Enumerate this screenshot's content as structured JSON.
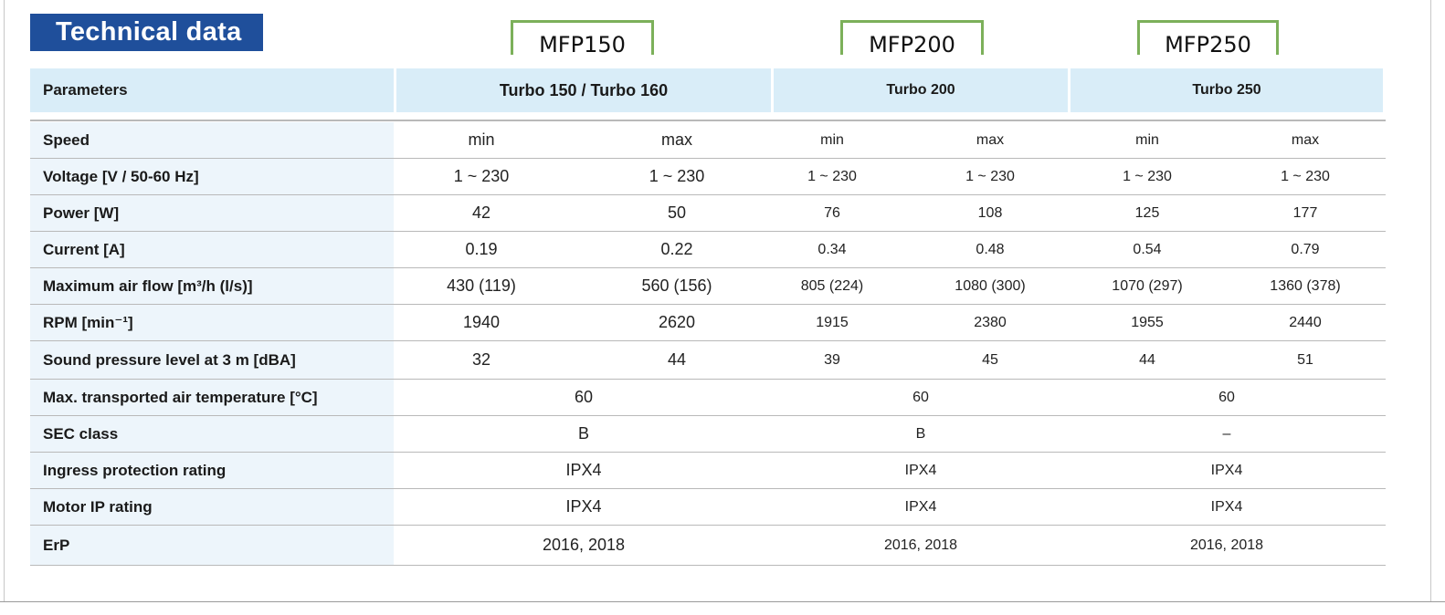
{
  "title": "Technical data",
  "models": [
    "MFP150",
    "MFP200",
    "MFP250"
  ],
  "header": {
    "parameters": "Parameters",
    "groups": [
      "Turbo 150 / Turbo 160",
      "Turbo 200",
      "Turbo 250"
    ]
  },
  "rows": [
    {
      "label": "Speed",
      "values": [
        "min",
        "max",
        "min",
        "max",
        "min",
        "max"
      ]
    },
    {
      "label": "Voltage [V / 50-60 Hz]",
      "values": [
        "1 ~ 230",
        "1 ~ 230",
        "1 ~ 230",
        "1 ~ 230",
        "1 ~ 230",
        "1 ~ 230"
      ]
    },
    {
      "label": "Power [W]",
      "values": [
        "42",
        "50",
        "76",
        "108",
        "125",
        "177"
      ]
    },
    {
      "label": "Current [A]",
      "values": [
        "0.19",
        "0.22",
        "0.34",
        "0.48",
        "0.54",
        "0.79"
      ]
    },
    {
      "label": "Maximum air flow [m³/h (l/s)]",
      "values": [
        "430 (119)",
        "560 (156)",
        "805 (224)",
        "1080 (300)",
        "1070 (297)",
        "1360 (378)"
      ]
    },
    {
      "label": "RPM [min⁻¹]",
      "values": [
        "1940",
        "2620",
        "1915",
        "2380",
        "1955",
        "2440"
      ]
    },
    {
      "label": "Sound pressure level at 3 m [dBA]",
      "values": [
        "32",
        "44",
        "39",
        "45",
        "44",
        "51"
      ]
    }
  ],
  "merged_rows": [
    {
      "label": "Max. transported air temperature [°C]",
      "values": [
        "60",
        "60",
        "60"
      ]
    },
    {
      "label": "SEC class",
      "values": [
        "B",
        "B",
        "–"
      ]
    },
    {
      "label": "Ingress protection rating",
      "values": [
        "IPX4",
        "IPX4",
        "IPX4"
      ]
    },
    {
      "label": "Motor IP rating",
      "values": [
        "IPX4",
        "IPX4",
        "IPX4"
      ]
    },
    {
      "label": "ErP",
      "values": [
        "2016, 2018",
        "2016, 2018",
        "2016, 2018"
      ]
    }
  ]
}
